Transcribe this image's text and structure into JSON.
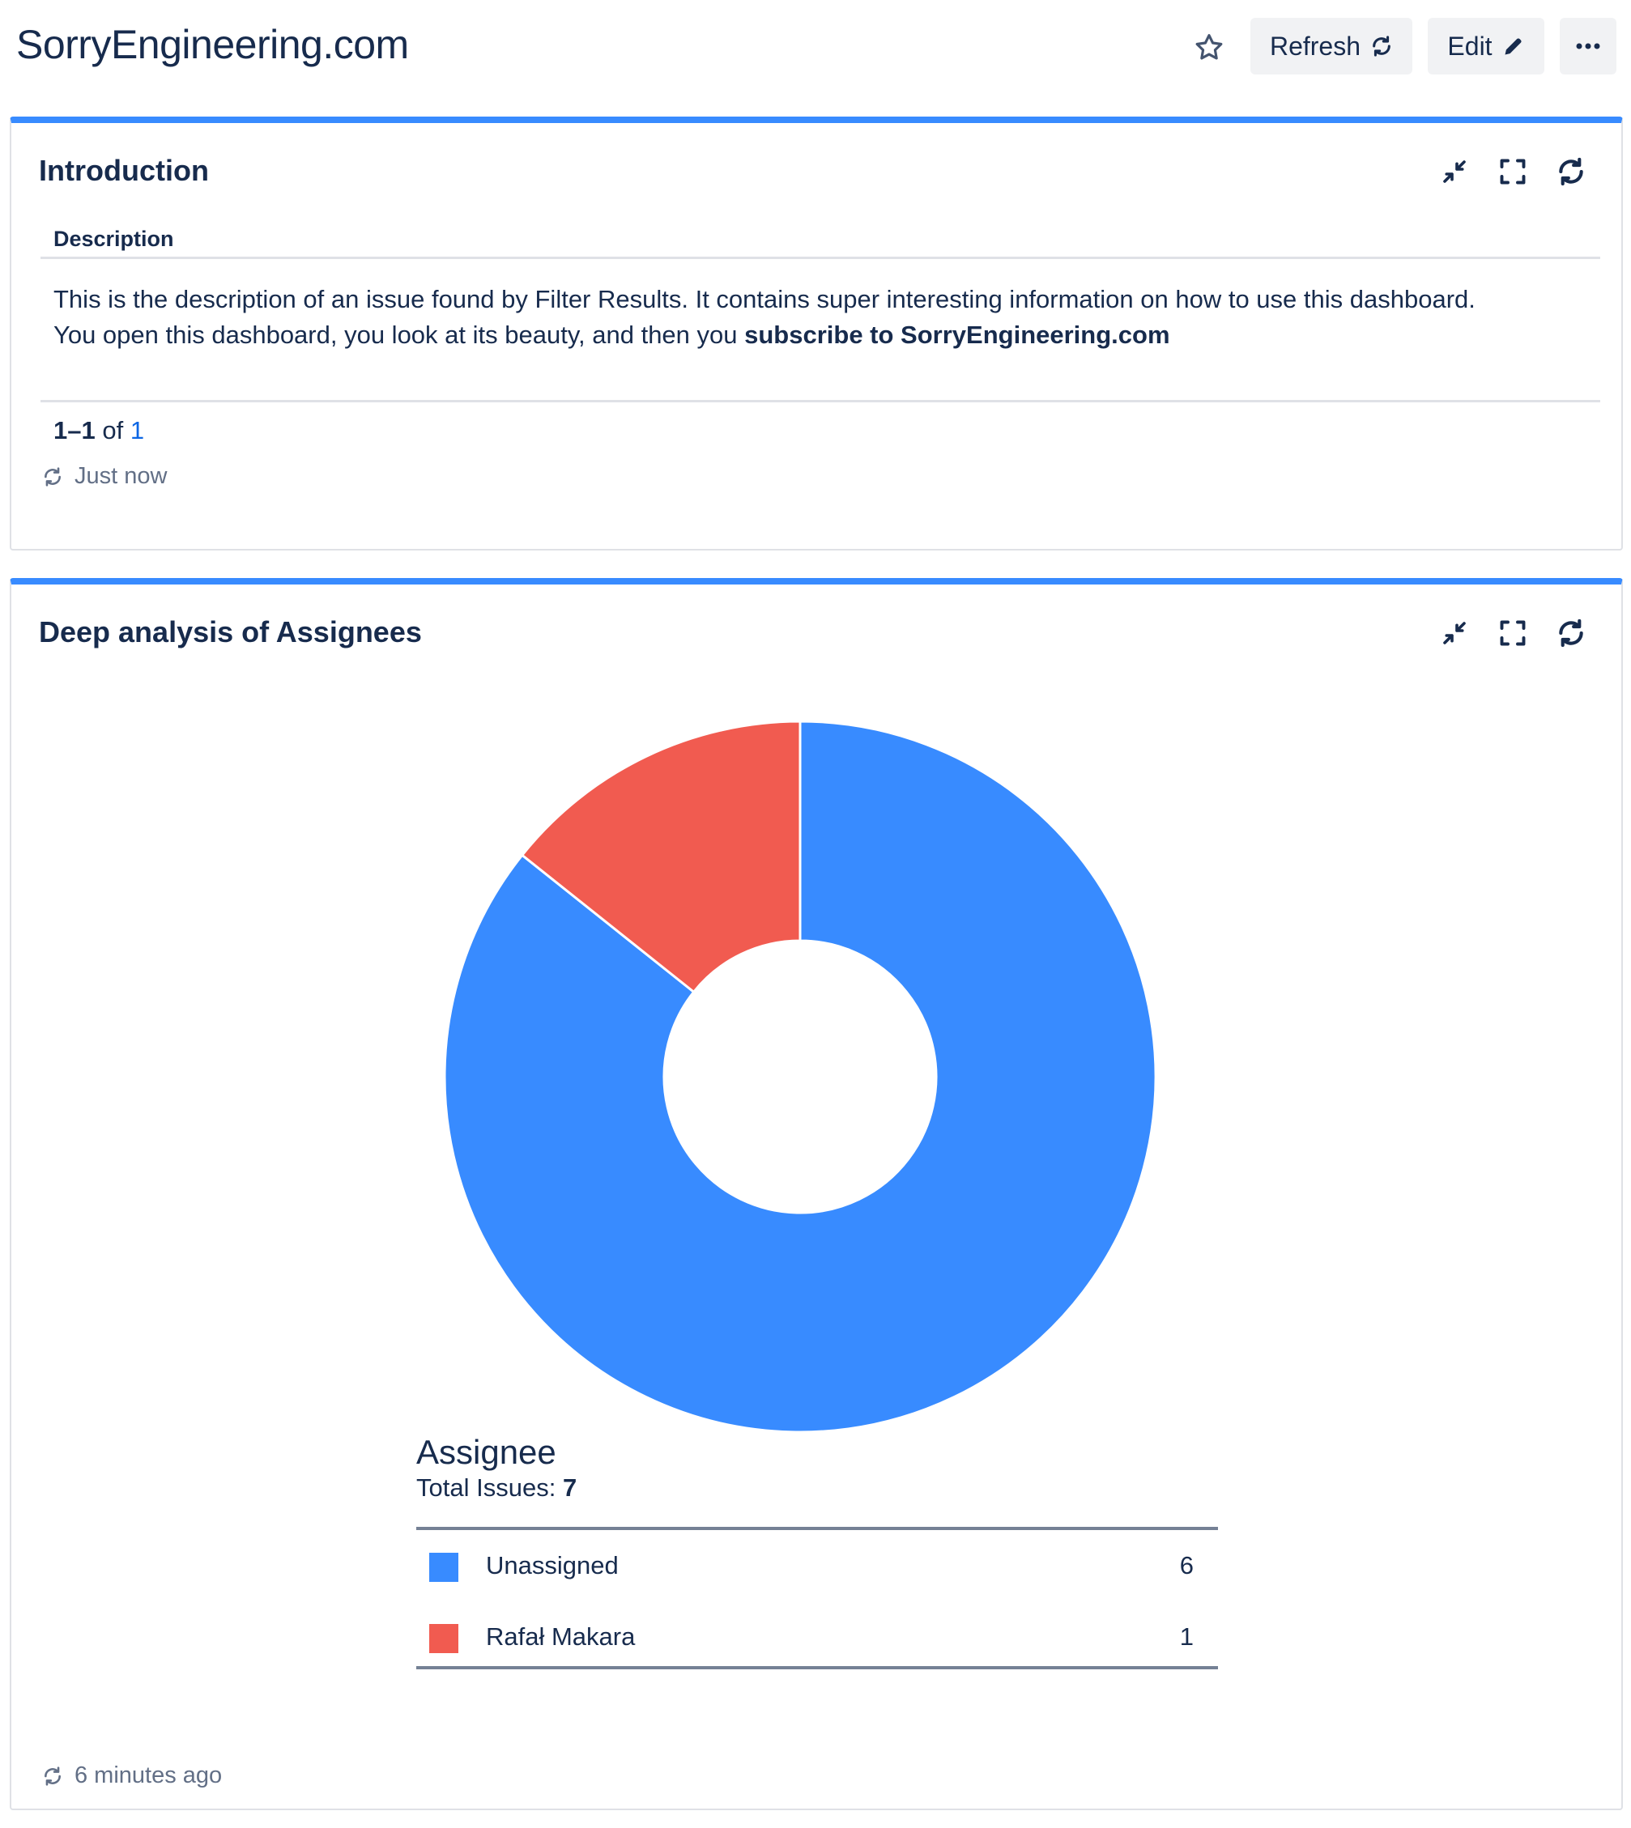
{
  "header": {
    "title": "SorryEngineering.com",
    "refresh_label": "Refresh",
    "edit_label": "Edit",
    "more_label": "•••"
  },
  "intro": {
    "title": "Introduction",
    "column_header": "Description",
    "description_line1": "This is the description of an issue found by Filter Results. It contains super interesting information on how to use this dashboard.",
    "description_line2_plain": "You open this dashboard, you look at its beauty, and then you ",
    "description_line2_bold": "subscribe to SorryEngineering.com",
    "pagination_range": "1–1",
    "pagination_of": "of",
    "pagination_total": "1",
    "updated": "Just now"
  },
  "assignees": {
    "title": "Deep analysis of Assignees",
    "legend_title": "Assignee",
    "total_label": "Total Issues:",
    "total_value": "7",
    "updated": "6 minutes ago"
  },
  "chart_data": {
    "type": "pie",
    "donut": true,
    "title": "Assignee",
    "categories": [
      "Unassigned",
      "Rafał Makara"
    ],
    "values": [
      6,
      1
    ],
    "colors": [
      "#388bff",
      "#f15b50"
    ],
    "legend": "bottom"
  },
  "colors": {
    "accent": "#388bff",
    "danger": "#f15b50",
    "text": "#172b4d",
    "subtle": "#626f86",
    "link": "#0c66e4"
  },
  "icons": {
    "star": "star-icon",
    "refresh": "refresh-icon",
    "edit": "pencil-icon",
    "more": "more-icon",
    "minimize": "minimize-icon",
    "fullscreen": "fullscreen-icon"
  }
}
